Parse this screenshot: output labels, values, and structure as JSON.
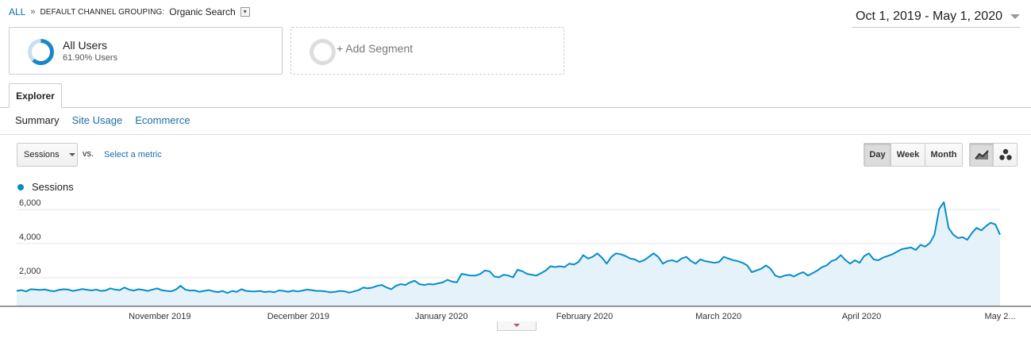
{
  "breadcrumb": {
    "all": "ALL",
    "separator": "»",
    "dimension": "DEFAULT CHANNEL GROUPING:",
    "value": "Organic Search"
  },
  "date_range": "Oct 1, 2019 - May 1, 2020",
  "segments": [
    {
      "name": "All Users",
      "subtitle": "61.90% Users",
      "percent": 61.9
    },
    {
      "name": "+ Add Segment"
    }
  ],
  "tabs": [
    "Explorer"
  ],
  "subtabs": {
    "active": "Summary",
    "links": [
      "Site Usage",
      "Ecommerce"
    ]
  },
  "controls": {
    "metric": "Sessions",
    "vs": "vs.",
    "select_metric": "Select a metric",
    "periods": [
      "Day",
      "Week",
      "Month"
    ],
    "selected_period": "Day",
    "chart_types": [
      "line-chart-icon",
      "motion-chart-icon"
    ]
  },
  "colors": {
    "series": "#058dc7",
    "fill": "#e6f2fa",
    "link": "#1a6fa8"
  },
  "chart_data": {
    "type": "area",
    "series": [
      {
        "name": "Sessions",
        "values": [
          900,
          950,
          870,
          1000,
          980,
          960,
          990,
          920,
          880,
          960,
          1000,
          980,
          900,
          950,
          1010,
          970,
          930,
          980,
          900,
          930,
          1050,
          980,
          950,
          1100,
          980,
          920,
          1000,
          960,
          900,
          980,
          1050,
          940,
          900,
          880,
          980,
          1200,
          980,
          920,
          930,
          850,
          900,
          950,
          880,
          830,
          900,
          780,
          900,
          850,
          1000,
          900,
          880,
          870,
          900,
          830,
          870,
          820,
          930,
          900,
          850,
          920,
          870,
          920,
          980,
          950,
          900,
          900,
          870,
          820,
          850,
          900,
          880,
          800,
          870,
          950,
          1100,
          1050,
          1100,
          1200,
          1250,
          1100,
          1000,
          1200,
          1300,
          1250,
          1400,
          1500,
          1300,
          1250,
          1300,
          1280,
          1350,
          1400,
          1550,
          1450,
          1400,
          1900,
          1850,
          1800,
          1800,
          1900,
          2100,
          2050,
          1750,
          1700,
          1850,
          1800,
          1700,
          2150,
          2050,
          1900,
          1850,
          1800,
          1950,
          2100,
          2350,
          2300,
          2350,
          2300,
          2500,
          2450,
          2600,
          3000,
          2800,
          2900,
          3100,
          2850,
          2500,
          2900,
          3100,
          3050,
          2950,
          2800,
          2750,
          2600,
          2700,
          2900,
          3100,
          2900,
          2500,
          2650,
          2700,
          2600,
          2800,
          2900,
          2650,
          2500,
          2750,
          2650,
          2600,
          2550,
          2600,
          2900,
          2800,
          2700,
          2650,
          2550,
          2400,
          2000,
          2100,
          2200,
          2400,
          2200,
          1800,
          1700,
          1800,
          1850,
          1750,
          1900,
          2000,
          1800,
          1950,
          2100,
          2300,
          2400,
          2650,
          2750,
          3000,
          2700,
          2500,
          2700,
          2550,
          2950,
          3100,
          2750,
          2700,
          2850,
          2950,
          3050,
          3200,
          3350,
          3400,
          3450,
          3300,
          3600,
          3500,
          3700,
          4200,
          5700,
          6100,
          4600,
          4200,
          4000,
          4050,
          3900,
          4300,
          4600,
          4450,
          4700,
          4900,
          4800,
          4200
        ]
      }
    ],
    "x_tick_labels": [
      "November 2019",
      "December 2019",
      "January 2020",
      "February 2020",
      "March 2020",
      "April 2020",
      "May 2..."
    ],
    "y_tick_labels": [
      "2,000",
      "4,000",
      "6,000"
    ],
    "yticks": [
      2000,
      4000,
      6000
    ],
    "ylim": [
      0,
      7000
    ],
    "x_start": "2019-10-01",
    "x_end": "2020-05-01",
    "legend": "top-left",
    "grid": true
  }
}
